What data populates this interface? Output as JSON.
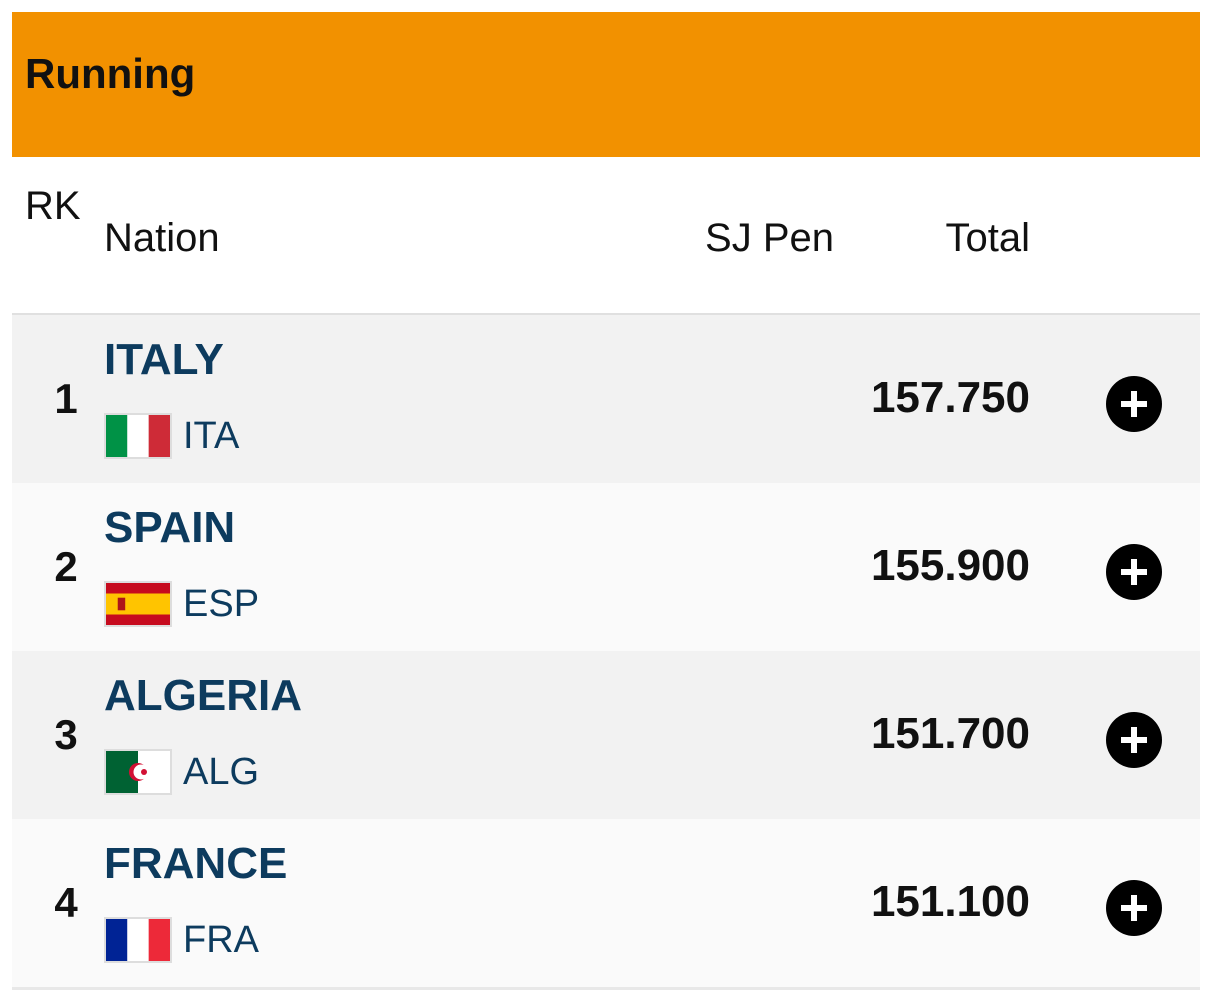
{
  "header": {
    "title": "Running"
  },
  "table": {
    "columns": [
      "RK",
      "Nation",
      "SJ Pen",
      "Total"
    ],
    "rows": [
      {
        "rank": "1",
        "nation": "ITALY",
        "code": "ITA",
        "total": "157.750"
      },
      {
        "rank": "2",
        "nation": "SPAIN",
        "code": "ESP",
        "total": "155.900"
      },
      {
        "rank": "3",
        "nation": "ALGERIA",
        "code": "ALG",
        "total": "151.700"
      },
      {
        "rank": "4",
        "nation": "FRANCE",
        "code": "FRA",
        "total": "151.100"
      }
    ]
  }
}
